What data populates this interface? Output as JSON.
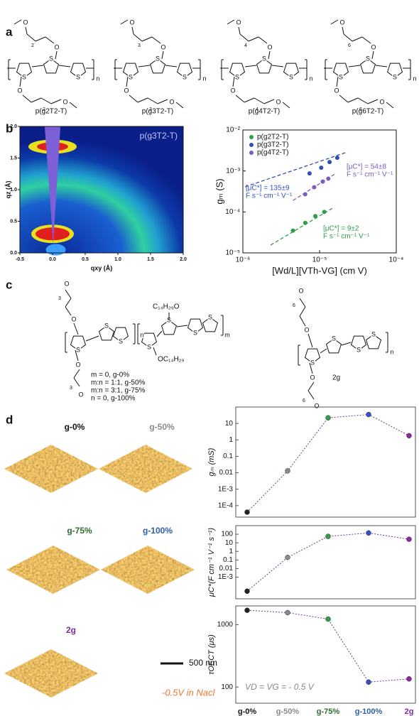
{
  "panel_labels": [
    "a",
    "b",
    "c",
    "d"
  ],
  "atoms": {
    "S": "S",
    "O": "O",
    "n": "n",
    "m": "m"
  },
  "panel_a": {
    "polymers": [
      {
        "name": "p(g2T2-T)",
        "repeat": "2"
      },
      {
        "name": "p(g3T2-T)",
        "repeat": "3"
      },
      {
        "name": "p(g4T2-T)",
        "repeat": "4"
      },
      {
        "name": "p(g6T2-T)",
        "repeat": "6"
      }
    ]
  },
  "giwaxs": {
    "label": "p(g3T2-T)",
    "xlabel": "qxy (Å)",
    "ylabel": "qz (Å)",
    "xlim": [
      -0.5,
      2.0
    ],
    "ylim": [
      0,
      2.0
    ],
    "xticks": [
      -0.5,
      {
        "value": 0,
        "label": "0.0"
      },
      0.5,
      {
        "value": 1,
        "label": "1.0"
      },
      1.5,
      {
        "value": 2,
        "label": "2.0"
      }
    ],
    "yticks": [
      {
        "value": 0,
        "label": "0.0"
      },
      0.5,
      {
        "value": 1,
        "label": "1.0"
      },
      1.5,
      {
        "value": 2,
        "label": "2.0"
      }
    ]
  },
  "panel_c": {
    "side_chain": "C₁₄H₂₉O",
    "side_chain_2": "OC₁₄H₂₉",
    "repeat": "3",
    "compositions": [
      "m = 0, g-0%",
      "m:n = 1:1, g-50%",
      "m:n = 3:1, g-75%",
      "n = 0, g-100%"
    ],
    "homopolymer": "2g",
    "homopolymer_repeat": "6"
  },
  "afm": {
    "labels": [
      "g-0%",
      "g-50%",
      "g-75%",
      "g-100%",
      "2g"
    ],
    "colors": [
      "#111111",
      "#8a8a8a",
      "#2f6b2f",
      "#2f5fa8",
      "#7b2a9a"
    ],
    "scale_bar": "500 nm",
    "condition": "-0.5V in Nacl"
  },
  "chart_data": [
    {
      "type": "scatter",
      "log_x": true,
      "log_y": true,
      "xlabel": "[Wd/L][VTh-VG] (cm V)",
      "ylabel": "gₘ (S)",
      "xlim": [
        1e-06,
        0.0001
      ],
      "ylim": [
        1e-05,
        0.01
      ],
      "xticks": [
        {
          "value": 1e-06,
          "label": "10⁻⁶"
        },
        {
          "value": 1e-05,
          "label": "10⁻⁵"
        },
        {
          "value": 0.0001,
          "label": "10⁻⁴"
        }
      ],
      "yticks": [
        {
          "value": 1e-05,
          "label": "10⁻⁵"
        },
        {
          "value": 0.0001,
          "label": "10⁻⁴"
        },
        {
          "value": 0.001,
          "label": "10⁻³"
        },
        {
          "value": 0.01,
          "label": "10⁻²"
        }
      ],
      "legend": "upper left",
      "series": [
        {
          "name": "p(g2T2-T)",
          "color": "#2e9e4a",
          "x": [
            4.5e-06,
            6.5e-06,
            8.8e-06,
            1.15e-05
          ],
          "values": [
            3.5e-05,
            5.4e-05,
            7.9e-05,
            0.0001
          ],
          "fit": {
            "x": [
              2.3e-06,
              1.55e-05
            ],
            "values": [
              1.55e-05,
              0.00013
            ]
          },
          "annotation": [
            "[μC*] = 9±2",
            "F s⁻¹ cm⁻¹ V⁻¹"
          ]
        },
        {
          "name": "p(g3T2-T)",
          "color": "#3050b8",
          "x": [
            7.4e-06,
            1.05e-05,
            1.35e-05,
            1.7e-05
          ],
          "values": [
            0.00087,
            0.0012,
            0.00165,
            0.0021
          ],
          "fit": {
            "x": [
              1.07e-06,
              2.3e-05
            ],
            "values": [
              0.00041,
              0.0029
            ]
          },
          "annotation": [
            "[μC*] = 135±9",
            "F s⁻¹ cm⁻¹ V⁻¹"
          ]
        },
        {
          "name": "p(g4T2-T)",
          "color": "#7a5cc0",
          "x": [
            6.5e-06,
            8.5e-06,
            1.1e-05,
            1.3e-05
          ],
          "values": [
            0.00027,
            0.0004,
            0.00055,
            0.00065
          ],
          "fit": {
            "x": [
              4.5e-06,
              1.6e-05
            ],
            "values": [
              0.00019,
              0.00085
            ]
          },
          "annotation": [
            "[μC*] = 54±8",
            "F s⁻¹ cm⁻¹ V⁻¹"
          ]
        }
      ]
    },
    {
      "type": "line",
      "log_y": true,
      "ylabel": "gₘ (mS)",
      "categories": [
        null,
        null,
        null,
        null,
        null
      ],
      "values": [
        4e-05,
        0.013,
        22,
        35,
        1.8
      ],
      "colors": [
        "#222222",
        "#8a8a8a",
        "#2e9e4a",
        "#3a4fc0",
        "#8a2aa0"
      ],
      "ylim": [
        2e-05,
        100
      ],
      "yticks": [
        {
          "value": 0.0001,
          "label": "1E-4"
        },
        {
          "value": 0.001,
          "label": "1E-3"
        },
        0.01,
        0.1,
        1,
        10
      ]
    },
    {
      "type": "line",
      "log_y": true,
      "ylabel": "μC*(F cm⁻¹ V⁻¹ s⁻¹)",
      "categories": [
        null,
        null,
        null,
        null,
        null
      ],
      "values": [
        2.3e-05,
        0.2,
        56,
        140,
        26
      ],
      "colors": [
        "#222222",
        "#8a8a8a",
        "#2e9e4a",
        "#3a4fc0",
        "#8a2aa0"
      ],
      "ylim": [
        3e-06,
        1000
      ],
      "yticks": [
        {
          "value": 0.001,
          "label": "1E-3"
        },
        0.01,
        0.1,
        1,
        10,
        100
      ]
    },
    {
      "type": "line",
      "log_y": true,
      "ylabel": "τOECT (μs)",
      "categories": [
        "g-0%",
        "g-50%",
        "g-75%",
        "g-100%",
        "2g"
      ],
      "values": [
        1700,
        1560,
        1230,
        120,
        135
      ],
      "colors": [
        "#222222",
        "#8a8a8a",
        "#2e9e4a",
        "#3a4fc0",
        "#8a2aa0"
      ],
      "label_colors": [
        "#111111",
        "#8a8a8a",
        "#2f6b2f",
        "#2f5fa8",
        "#7b2a9a"
      ],
      "ylim": [
        55,
        2000
      ],
      "yticks": [
        100,
        1000
      ],
      "annotation": "VD = VG = - 0.5 V"
    }
  ]
}
